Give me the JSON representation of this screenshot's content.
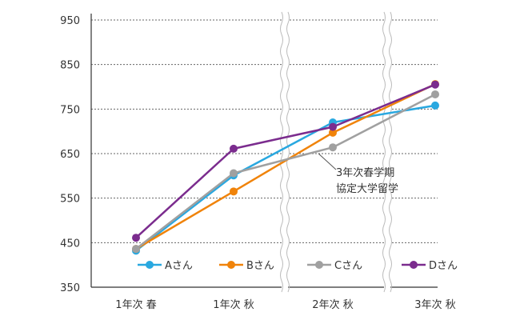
{
  "chart_data": {
    "type": "line",
    "categories": [
      "1年次 春",
      "1年次 秋",
      "2年次 秋",
      "3年次 秋"
    ],
    "ylim": [
      350,
      950
    ],
    "yticks": [
      350,
      450,
      550,
      650,
      750,
      850,
      950
    ],
    "grid": true,
    "legend_position": "bottom",
    "series": [
      {
        "name": "Aさん",
        "color": "#29a8e0",
        "values": [
          432,
          601,
          720,
          758
        ]
      },
      {
        "name": "Bさん",
        "color": "#f0830a",
        "values": [
          436,
          565,
          697,
          806
        ]
      },
      {
        "name": "Cさん",
        "color": "#a0a0a0",
        "values": [
          436,
          606,
          664,
          783
        ]
      },
      {
        "name": "Dさん",
        "color": "#7b2c8e",
        "values": [
          461,
          661,
          710,
          805
        ]
      }
    ],
    "annotation": {
      "lines": [
        "3年次春学期",
        "協定大学留学"
      ],
      "target_series": "Cさん",
      "target_x": 2.5
    }
  }
}
